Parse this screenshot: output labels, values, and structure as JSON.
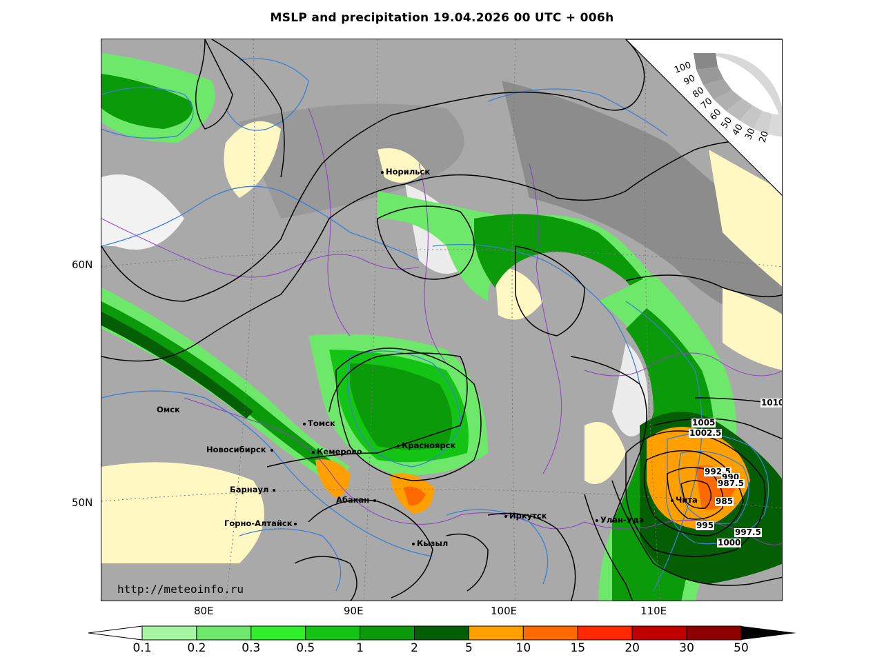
{
  "title": "MSLP and precipitation 19.04.2026 00 UTC + 006h",
  "lat_labels": [
    "60N",
    "50N"
  ],
  "lon_labels": [
    "80E",
    "90E",
    "100E",
    "110E"
  ],
  "cities": [
    "Норильск",
    "Омск",
    "Томск",
    "Новосибирск",
    "Кемерово",
    "Красноярск",
    "Барнаул",
    "Абакан",
    "Горно-Алтайск",
    "Кызыл",
    "Иркутск",
    "Улан-Удэ",
    "Чита"
  ],
  "isobar_labels": [
    "1010",
    "1005",
    "1002.5",
    "992.5",
    "990",
    "987.5",
    "985",
    "995",
    "997.5",
    "1000"
  ],
  "cloud_legend": [
    "100",
    "90",
    "80",
    "70",
    "60",
    "50",
    "40",
    "30",
    "20"
  ],
  "url": "http://meteoinfo.ru",
  "colorbar": {
    "ticks": [
      "0.1",
      "0.2",
      "0.3",
      "0.5",
      "1",
      "2",
      "5",
      "10",
      "15",
      "20",
      "30",
      "50"
    ],
    "colors": [
      "#a6f5a0",
      "#6ee86a",
      "#2ff02a",
      "#14c414",
      "#0a9a0a",
      "#045e04",
      "#ffa000",
      "#ff6a00",
      "#ff2800",
      "#c00000",
      "#8c0000"
    ]
  },
  "colors": {
    "isobar": "#000000",
    "contour_blue": "#3a7fd5",
    "border": "#8a3fc4"
  }
}
